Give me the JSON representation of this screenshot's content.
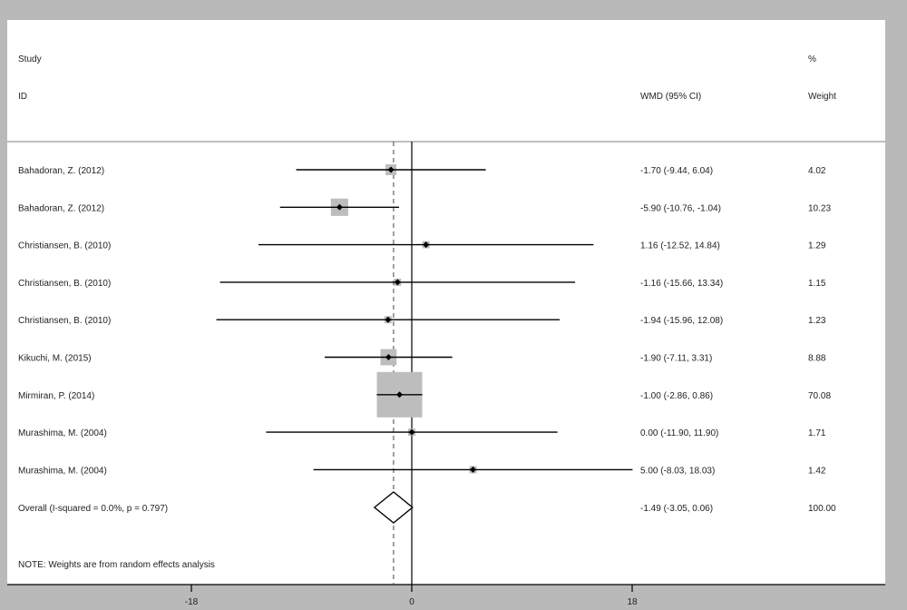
{
  "chart_data": {
    "type": "forest",
    "header": {
      "col1_line1": "Study",
      "col1_line2": "ID",
      "col2": "WMD (95% CI)",
      "col3_line1": "%",
      "col3_line2": "Weight"
    },
    "xticks": [
      -18,
      0,
      18
    ],
    "xlim": [
      -33,
      39
    ],
    "null_line": 0,
    "overall_line": -1.49,
    "studies": [
      {
        "label": "Bahadoran, Z.  (2012)",
        "est": -1.7,
        "lo": -9.44,
        "hi": 6.04,
        "ci_text": "-1.70 (-9.44, 6.04)",
        "weight": 4.02,
        "weight_text": "4.02"
      },
      {
        "label": "Bahadoran, Z.  (2012)",
        "est": -5.9,
        "lo": -10.76,
        "hi": -1.04,
        "ci_text": "-5.90 (-10.76, -1.04)",
        "weight": 10.23,
        "weight_text": "10.23"
      },
      {
        "label": "Christiansen, B. (2010)",
        "est": 1.16,
        "lo": -12.52,
        "hi": 14.84,
        "ci_text": "1.16 (-12.52, 14.84)",
        "weight": 1.29,
        "weight_text": "1.29"
      },
      {
        "label": "Christiansen, B. (2010)",
        "est": -1.16,
        "lo": -15.66,
        "hi": 13.34,
        "ci_text": "-1.16 (-15.66, 13.34)",
        "weight": 1.15,
        "weight_text": "1.15"
      },
      {
        "label": "Christiansen, B. (2010)",
        "est": -1.94,
        "lo": -15.96,
        "hi": 12.08,
        "ci_text": "-1.94 (-15.96, 12.08)",
        "weight": 1.23,
        "weight_text": "1.23"
      },
      {
        "label": "Kikuchi, M.  (2015)",
        "est": -1.9,
        "lo": -7.11,
        "hi": 3.31,
        "ci_text": "-1.90 (-7.11, 3.31)",
        "weight": 8.88,
        "weight_text": "8.88"
      },
      {
        "label": "Mirmiran, P. (2014)",
        "est": -1.0,
        "lo": -2.86,
        "hi": 0.86,
        "ci_text": "-1.00 (-2.86, 0.86)",
        "weight": 70.08,
        "weight_text": "70.08"
      },
      {
        "label": "Murashima, M.  (2004)",
        "est": 0.0,
        "lo": -11.9,
        "hi": 11.9,
        "ci_text": "0.00 (-11.90, 11.90)",
        "weight": 1.71,
        "weight_text": "1.71"
      },
      {
        "label": "Murashima, M.  (2004)",
        "est": 5.0,
        "lo": -8.03,
        "hi": 18.03,
        "ci_text": "5.00 (-8.03, 18.03)",
        "weight": 1.42,
        "weight_text": "1.42"
      }
    ],
    "overall": {
      "label": "Overall  (I-squared = 0.0%, p = 0.797)",
      "est": -1.49,
      "lo": -3.05,
      "hi": 0.06,
      "ci_text": "-1.49 (-3.05, 0.06)",
      "weight_text": "100.00"
    },
    "note": "NOTE: Weights are from random effects analysis",
    "colors": {
      "background": "#b9b9b9",
      "plot_bg": "#ffffff",
      "box": "#bdbdbd",
      "line": "#000000",
      "dashed": "#555555",
      "divider": "#a9a9a9"
    }
  }
}
